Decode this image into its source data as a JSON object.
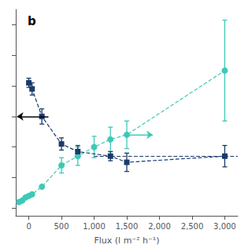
{
  "chart_data": {
    "type": "line",
    "title": "b",
    "xlabel": "Flux (l m⁻² h⁻¹)",
    "xlim": [
      -200,
      3200
    ],
    "ylim": [
      -0.05,
      1.3
    ],
    "xticks": [
      0,
      500,
      {
        "value": 1000,
        "label": "1,000"
      },
      {
        "value": 1500,
        "label": "1,500"
      },
      {
        "value": 2000,
        "label": "2,000"
      },
      {
        "value": 2500,
        "label": "2,500"
      },
      {
        "value": 3000,
        "label": "3,000"
      }
    ],
    "yticks": [
      0,
      0.2,
      0.4,
      0.6,
      0.8,
      1.0,
      1.2
    ],
    "tick_labels": "x",
    "grid": false,
    "line_style": "dashed",
    "series": [
      {
        "color": "#3ec9b5",
        "marker": "circle",
        "x": [
          -150,
          -100,
          -50,
          0,
          50,
          200,
          500,
          750,
          1000,
          1250,
          1500,
          3000
        ],
        "values": [
          0.04,
          0.05,
          0.07,
          0.08,
          0.09,
          0.14,
          0.28,
          0.34,
          0.4,
          0.45,
          0.48,
          0.9
        ],
        "yerr": [
          0,
          0,
          0,
          0,
          0,
          0,
          0.05,
          0.06,
          0.07,
          0.08,
          0.09,
          0.33
        ],
        "arrow": {
          "x": [
            1500,
            1900
          ],
          "y": 0.48,
          "color": "#3ec9b5"
        }
      },
      {
        "color": "#1a3a6b",
        "marker": "square",
        "x": [
          0,
          50,
          200,
          500,
          750,
          1250,
          1500,
          3000
        ],
        "values": [
          0.82,
          0.78,
          0.6,
          0.42,
          0.37,
          0.34,
          0.3,
          0.34
        ],
        "yerr": [
          0.03,
          0.04,
          0.05,
          0.04,
          0.04,
          0.03,
          0.06,
          0.07
        ],
        "hline": {
          "y": 0.34,
          "x": [
            1000,
            3200
          ]
        },
        "arrow": {
          "x": [
            300,
            -180
          ],
          "y": 0.6,
          "color": "#000000"
        }
      }
    ]
  }
}
